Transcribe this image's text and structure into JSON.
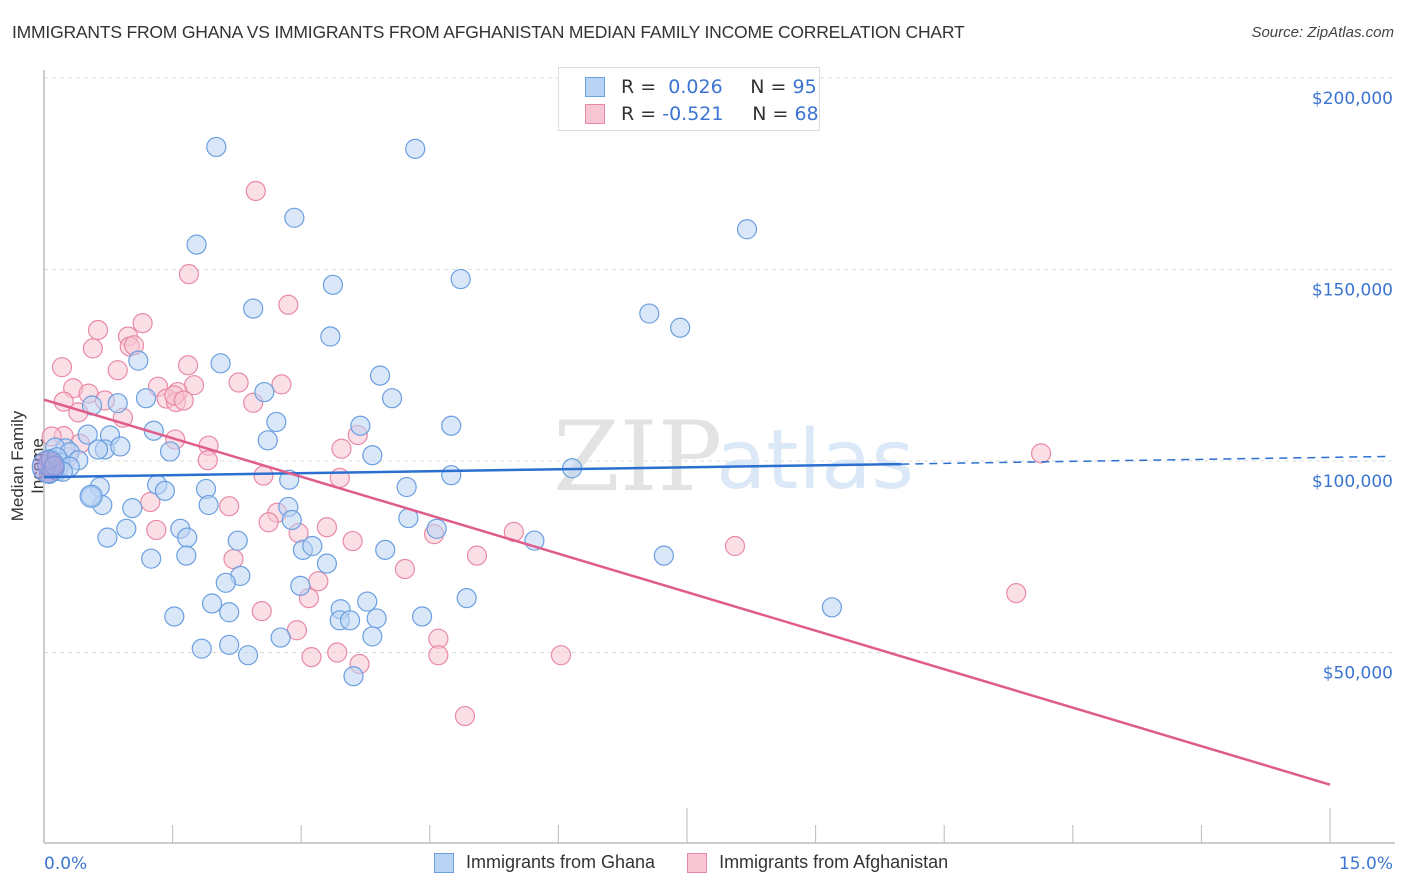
{
  "title": "IMMIGRANTS FROM GHANA VS IMMIGRANTS FROM AFGHANISTAN MEDIAN FAMILY INCOME CORRELATION CHART",
  "source": "Source: ZipAtlas.com",
  "watermark": {
    "zip": "ZIP",
    "atlas": "atlas"
  },
  "colors": {
    "ghana": "#6b9fe0",
    "ghana_fill": "#b9d3f4",
    "ghana_line": "#2b6fd1",
    "afghanistan": "#e88aa6",
    "afghanistan_fill": "#f7c5d4",
    "afghanistan_line": "#e05c8a",
    "tick": "#3b74d1"
  },
  "legend": {
    "rows": [
      {
        "r_label": "R =",
        "r_value": "0.026",
        "n_label": "N =",
        "n_value": "95"
      },
      {
        "r_label": "R =",
        "r_value": "-0.521",
        "n_label": "N =",
        "n_value": "68"
      }
    ]
  },
  "chart_data": {
    "type": "scatter",
    "title": "IMMIGRANTS FROM GHANA VS IMMIGRANTS FROM AFGHANISTAN MEDIAN FAMILY INCOME CORRELATION CHART",
    "xlabel": "",
    "ylabel": "Median Family Income",
    "xlim": [
      0,
      15
    ],
    "ylim": [
      0,
      205000
    ],
    "x_tick_labels": [
      "0.0%",
      "15.0%"
    ],
    "y_ticks": [
      50000,
      100000,
      150000,
      200000
    ],
    "y_tick_labels": [
      "$50,000",
      "$100,000",
      "$150,000",
      "$200,000"
    ],
    "grid": true,
    "legend_position": "top-center",
    "series": [
      {
        "name": "Immigrants from Ghana",
        "R": 0.026,
        "N": 95,
        "trend": {
          "x0": 0,
          "y0": 95800,
          "x1": 10.0,
          "y1": 99200,
          "dashed_to_x": 15.7,
          "dashed_to_y": 101200
        },
        "points": [
          [
            2.01,
            182000
          ],
          [
            4.33,
            181500
          ],
          [
            2.92,
            163500
          ],
          [
            8.2,
            160500
          ],
          [
            1.78,
            156500
          ],
          [
            4.86,
            147500
          ],
          [
            3.37,
            146000
          ],
          [
            2.44,
            139800
          ],
          [
            7.06,
            138500
          ],
          [
            7.42,
            134800
          ],
          [
            3.34,
            132500
          ],
          [
            1.1,
            126200
          ],
          [
            2.06,
            125500
          ],
          [
            3.92,
            122300
          ],
          [
            2.57,
            118000
          ],
          [
            4.06,
            116400
          ],
          [
            1.19,
            116400
          ],
          [
            0.86,
            115100
          ],
          [
            0.56,
            114500
          ],
          [
            2.71,
            110200
          ],
          [
            4.75,
            109200
          ],
          [
            3.69,
            109200
          ],
          [
            0.51,
            106900
          ],
          [
            1.28,
            107900
          ],
          [
            0.77,
            106700
          ],
          [
            2.61,
            105400
          ],
          [
            1.47,
            102500
          ],
          [
            0.71,
            103000
          ],
          [
            0.89,
            103800
          ],
          [
            0.25,
            103300
          ],
          [
            0.13,
            103500
          ],
          [
            0.3,
            102300
          ],
          [
            0.63,
            103000
          ],
          [
            3.83,
            101500
          ],
          [
            4.75,
            96300
          ],
          [
            6.16,
            98100
          ],
          [
            0.06,
            96600
          ],
          [
            0.09,
            97900
          ],
          [
            0.16,
            97400
          ],
          [
            0.65,
            93200
          ],
          [
            1.32,
            93800
          ],
          [
            1.41,
            92200
          ],
          [
            1.89,
            92700
          ],
          [
            2.86,
            95100
          ],
          [
            4.23,
            93200
          ],
          [
            1.92,
            88500
          ],
          [
            0.68,
            88500
          ],
          [
            1.03,
            87700
          ],
          [
            2.85,
            88000
          ],
          [
            2.89,
            84600
          ],
          [
            4.25,
            85100
          ],
          [
            0.96,
            82300
          ],
          [
            1.59,
            82300
          ],
          [
            0.74,
            80000
          ],
          [
            2.26,
            79200
          ],
          [
            1.67,
            80000
          ],
          [
            3.02,
            76800
          ],
          [
            3.98,
            76800
          ],
          [
            3.13,
            77800
          ],
          [
            5.72,
            79200
          ],
          [
            7.23,
            75300
          ],
          [
            1.25,
            74500
          ],
          [
            1.66,
            75300
          ],
          [
            3.3,
            73200
          ],
          [
            2.29,
            70000
          ],
          [
            2.12,
            68200
          ],
          [
            2.99,
            67400
          ],
          [
            4.58,
            82300
          ],
          [
            4.93,
            64200
          ],
          [
            9.19,
            61800
          ],
          [
            1.96,
            62800
          ],
          [
            1.52,
            59400
          ],
          [
            2.16,
            60500
          ],
          [
            3.46,
            61300
          ],
          [
            3.77,
            63300
          ],
          [
            3.45,
            58400
          ],
          [
            3.57,
            58400
          ],
          [
            3.88,
            58900
          ],
          [
            4.41,
            59400
          ],
          [
            2.76,
            53900
          ],
          [
            3.83,
            54200
          ],
          [
            1.84,
            51000
          ],
          [
            2.16,
            52000
          ],
          [
            2.38,
            49300
          ],
          [
            3.61,
            43800
          ],
          [
            0.04,
            99000
          ],
          [
            0.1,
            98000
          ],
          [
            0.55,
            90800
          ],
          [
            0.2,
            99500
          ],
          [
            0.08,
            100500
          ],
          [
            0.15,
            101000
          ],
          [
            0.4,
            100200
          ],
          [
            0.3,
            98500
          ],
          [
            0.22,
            97200
          ],
          [
            0.12,
            98800
          ]
        ]
      },
      {
        "name": "Immigrants from Afghanistan",
        "R": -0.521,
        "N": 68,
        "trend": {
          "x0": 0,
          "y0": 116000,
          "x1": 15.0,
          "y1": 15500
        },
        "points": [
          [
            2.47,
            170500
          ],
          [
            1.69,
            148800
          ],
          [
            2.85,
            140800
          ],
          [
            0.63,
            134200
          ],
          [
            1.15,
            136000
          ],
          [
            0.98,
            132500
          ],
          [
            0.57,
            129400
          ],
          [
            1.0,
            129900
          ],
          [
            1.05,
            130200
          ],
          [
            0.21,
            124500
          ],
          [
            0.86,
            123700
          ],
          [
            1.68,
            125000
          ],
          [
            2.27,
            120500
          ],
          [
            2.77,
            120000
          ],
          [
            1.75,
            119800
          ],
          [
            0.34,
            119000
          ],
          [
            1.33,
            119400
          ],
          [
            0.52,
            117600
          ],
          [
            1.56,
            118000
          ],
          [
            0.23,
            115500
          ],
          [
            0.71,
            115800
          ],
          [
            1.43,
            116300
          ],
          [
            1.54,
            115400
          ],
          [
            1.52,
            117100
          ],
          [
            1.63,
            115800
          ],
          [
            2.44,
            115200
          ],
          [
            0.92,
            111300
          ],
          [
            0.4,
            112700
          ],
          [
            0.23,
            106500
          ],
          [
            1.53,
            105600
          ],
          [
            1.92,
            104000
          ],
          [
            3.66,
            106800
          ],
          [
            3.47,
            103200
          ],
          [
            1.91,
            100200
          ],
          [
            0.09,
            106400
          ],
          [
            0.28,
            101000
          ],
          [
            0.17,
            98300
          ],
          [
            0.06,
            100100
          ],
          [
            2.56,
            96200
          ],
          [
            3.45,
            95600
          ],
          [
            1.24,
            89300
          ],
          [
            2.16,
            88200
          ],
          [
            2.72,
            86500
          ],
          [
            3.3,
            82700
          ],
          [
            4.55,
            80900
          ],
          [
            2.62,
            84000
          ],
          [
            2.97,
            81200
          ],
          [
            3.6,
            79100
          ],
          [
            5.48,
            81500
          ],
          [
            8.06,
            77800
          ],
          [
            5.05,
            75300
          ],
          [
            2.21,
            74400
          ],
          [
            4.21,
            71800
          ],
          [
            3.2,
            68600
          ],
          [
            3.09,
            64200
          ],
          [
            11.34,
            65500
          ],
          [
            2.54,
            60800
          ],
          [
            2.95,
            55800
          ],
          [
            4.6,
            53600
          ],
          [
            3.12,
            48800
          ],
          [
            3.42,
            50000
          ],
          [
            4.6,
            49300
          ],
          [
            6.03,
            49300
          ],
          [
            3.68,
            47000
          ],
          [
            4.91,
            33400
          ],
          [
            11.63,
            102000
          ],
          [
            1.31,
            82000
          ],
          [
            0.42,
            104500
          ]
        ]
      }
    ]
  },
  "bottom_legend": [
    {
      "label": "Immigrants from Ghana"
    },
    {
      "label": "Immigrants from Afghanistan"
    }
  ]
}
